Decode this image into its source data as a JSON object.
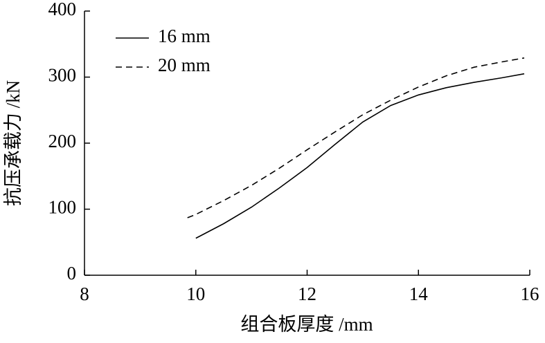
{
  "chart_data": {
    "type": "line",
    "xlabel": "组合板厚度 /mm",
    "ylabel": "抗压承载力 /kN",
    "xlim": [
      8,
      16
    ],
    "xticks": [
      8,
      10,
      12,
      14,
      16
    ],
    "ylim": [
      0,
      400
    ],
    "yticks": [
      0,
      100,
      200,
      300,
      400
    ],
    "grid": false,
    "legend": "upper-left",
    "series": [
      {
        "name": "16 mm",
        "color": "#000000",
        "linestyle": "solid",
        "x": [
          10,
          10.5,
          11,
          11.5,
          12,
          12.5,
          13,
          13.5,
          14,
          14.5,
          15,
          15.5,
          15.9
        ],
        "values": [
          56,
          78,
          103,
          132,
          163,
          198,
          232,
          257,
          273,
          284,
          292,
          299,
          305
        ]
      },
      {
        "name": "20 mm",
        "color": "#000000",
        "linestyle": "dashed",
        "x": [
          9.85,
          10,
          10.5,
          11,
          11.5,
          12,
          12.5,
          13,
          13.5,
          14,
          14.5,
          15,
          15.5,
          15.9
        ],
        "values": [
          87,
          92,
          113,
          136,
          162,
          190,
          217,
          243,
          265,
          285,
          302,
          315,
          323,
          329
        ]
      }
    ]
  }
}
